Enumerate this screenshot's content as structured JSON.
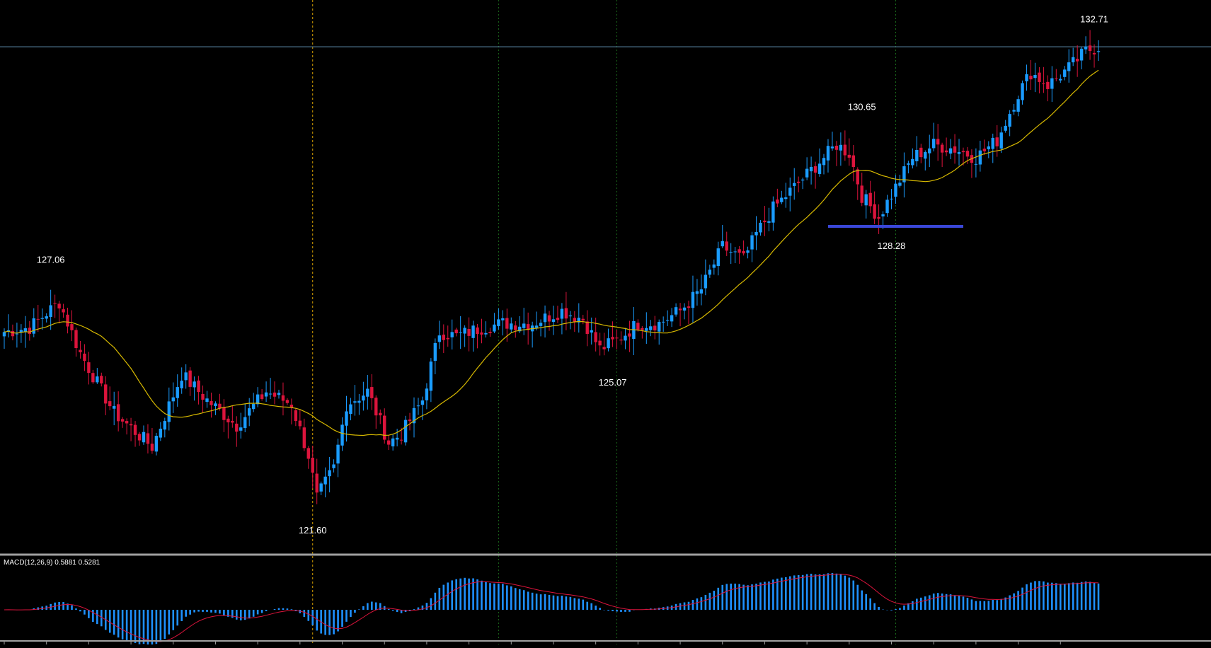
{
  "colors": {
    "background": "#000000",
    "bull": "#1a9cff",
    "bear": "#dc143c",
    "ma": "#d6b800",
    "price_line": "#5f8fb0",
    "separator": "#a0a0a0",
    "support": "#3a47d8",
    "vline_orange": "#d9a100",
    "vline_green": "#1b6a1b",
    "macd_hist": "#1e90ff",
    "macd_signal": "#dc143c",
    "text": "#ffffff"
  },
  "macd_indicator": {
    "label": "MACD(12,26,9) 0.5881 0.5281"
  },
  "chart_data": {
    "type": "candlestick",
    "series_count": 260,
    "price_range": [
      120.6,
      133.6
    ],
    "current_price_line": 132.5,
    "trend": [
      [
        0,
        125.8
      ],
      [
        6,
        125.9
      ],
      [
        13,
        126.5
      ],
      [
        18,
        125.3
      ],
      [
        26,
        123.9
      ],
      [
        35,
        123.1
      ],
      [
        42,
        124.8
      ],
      [
        48,
        124.2
      ],
      [
        55,
        123.6
      ],
      [
        62,
        124.4
      ],
      [
        68,
        124.1
      ],
      [
        72,
        122.9
      ],
      [
        74,
        121.9
      ],
      [
        78,
        122.6
      ],
      [
        81,
        124.1
      ],
      [
        86,
        124.4
      ],
      [
        91,
        123.2
      ],
      [
        94,
        123.4
      ],
      [
        99,
        124.2
      ],
      [
        103,
        125.8
      ],
      [
        107,
        125.7
      ],
      [
        113,
        125.9
      ],
      [
        118,
        126.0
      ],
      [
        125,
        126.0
      ],
      [
        132,
        126.3
      ],
      [
        137,
        126.1
      ],
      [
        141,
        125.4
      ],
      [
        145,
        125.6
      ],
      [
        150,
        126.0
      ],
      [
        155,
        126.0
      ],
      [
        160,
        126.3
      ],
      [
        165,
        126.8
      ],
      [
        170,
        127.8
      ],
      [
        175,
        127.5
      ],
      [
        178,
        128.1
      ],
      [
        182,
        128.7
      ],
      [
        186,
        129.1
      ],
      [
        192,
        129.7
      ],
      [
        197,
        130.2
      ],
      [
        200,
        130.0
      ],
      [
        203,
        129.0
      ],
      [
        207,
        128.5
      ],
      [
        211,
        129.2
      ],
      [
        215,
        129.9
      ],
      [
        220,
        130.2
      ],
      [
        225,
        130.1
      ],
      [
        230,
        129.9
      ],
      [
        235,
        130.3
      ],
      [
        240,
        131.4
      ],
      [
        243,
        131.9
      ],
      [
        247,
        131.6
      ],
      [
        252,
        132.0
      ],
      [
        256,
        132.4
      ],
      [
        259,
        132.5
      ]
    ],
    "annotations": [
      {
        "index": 11,
        "price": 127.06,
        "label": "127.06",
        "pos": "above"
      },
      {
        "index": 73,
        "price": 121.6,
        "label": "121.60",
        "pos": "below"
      },
      {
        "index": 144,
        "price": 125.07,
        "label": "125.07",
        "pos": "below"
      },
      {
        "index": 203,
        "price": 130.65,
        "label": "130.65",
        "pos": "above"
      },
      {
        "index": 210,
        "price": 128.28,
        "label": "128.28",
        "pos": "below"
      },
      {
        "index": 258,
        "price": 132.71,
        "label": "132.71",
        "pos": "above"
      }
    ],
    "support_line": {
      "price": 128.28,
      "from_index": 195,
      "to_index": 227
    },
    "vertical_markers": [
      {
        "index": 73,
        "style": "orange"
      },
      {
        "index": 117,
        "style": "green"
      },
      {
        "index": 145,
        "style": "green"
      },
      {
        "index": 211,
        "style": "green"
      }
    ],
    "ma_period": 20,
    "macd": {
      "fast": 12,
      "slow": 26,
      "signal": 9,
      "macd": 0.5881,
      "signal_value": 0.5281
    }
  }
}
